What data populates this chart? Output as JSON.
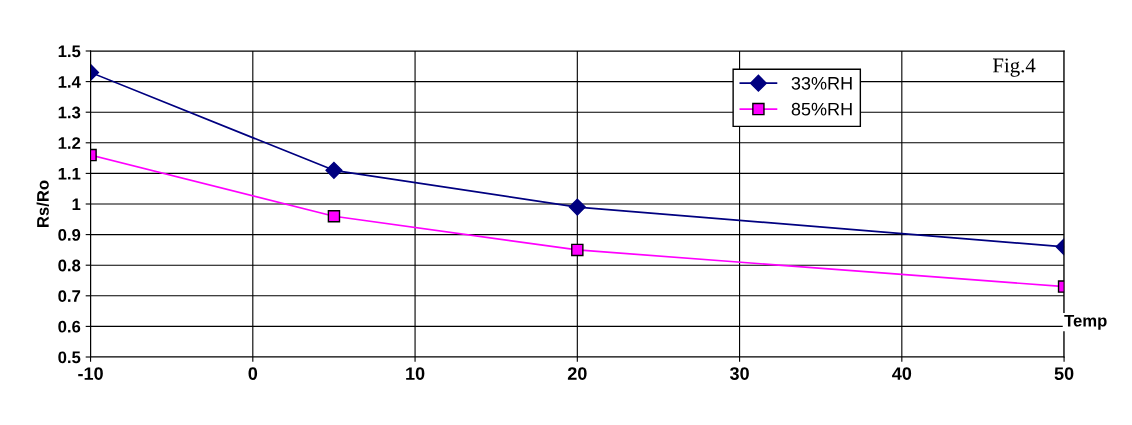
{
  "chart_data": {
    "type": "line",
    "xlabel": "Temp",
    "ylabel": "Rs/Ro",
    "annotations": [
      "Fig.4"
    ],
    "xlim": [
      -10,
      50
    ],
    "xticks": [
      -10,
      0,
      10,
      20,
      30,
      40,
      50
    ],
    "ylim": [
      0.5,
      1.5
    ],
    "yticks": [
      0.5,
      0.6,
      0.7,
      0.8,
      0.9,
      1,
      1.1,
      1.2,
      1.3,
      1.4,
      1.5
    ],
    "grid": true,
    "legend": "top right",
    "series": [
      {
        "name": "33%RH",
        "color": "#000080",
        "marker": "diamond",
        "x": [
          -10,
          5,
          20,
          50
        ],
        "values": [
          1.43,
          1.11,
          0.99,
          0.86
        ]
      },
      {
        "name": "85%RH",
        "color": "#ff00ff",
        "marker": "square",
        "x": [
          -10,
          5,
          20,
          50
        ],
        "values": [
          1.16,
          0.96,
          0.85,
          0.73
        ]
      }
    ]
  }
}
